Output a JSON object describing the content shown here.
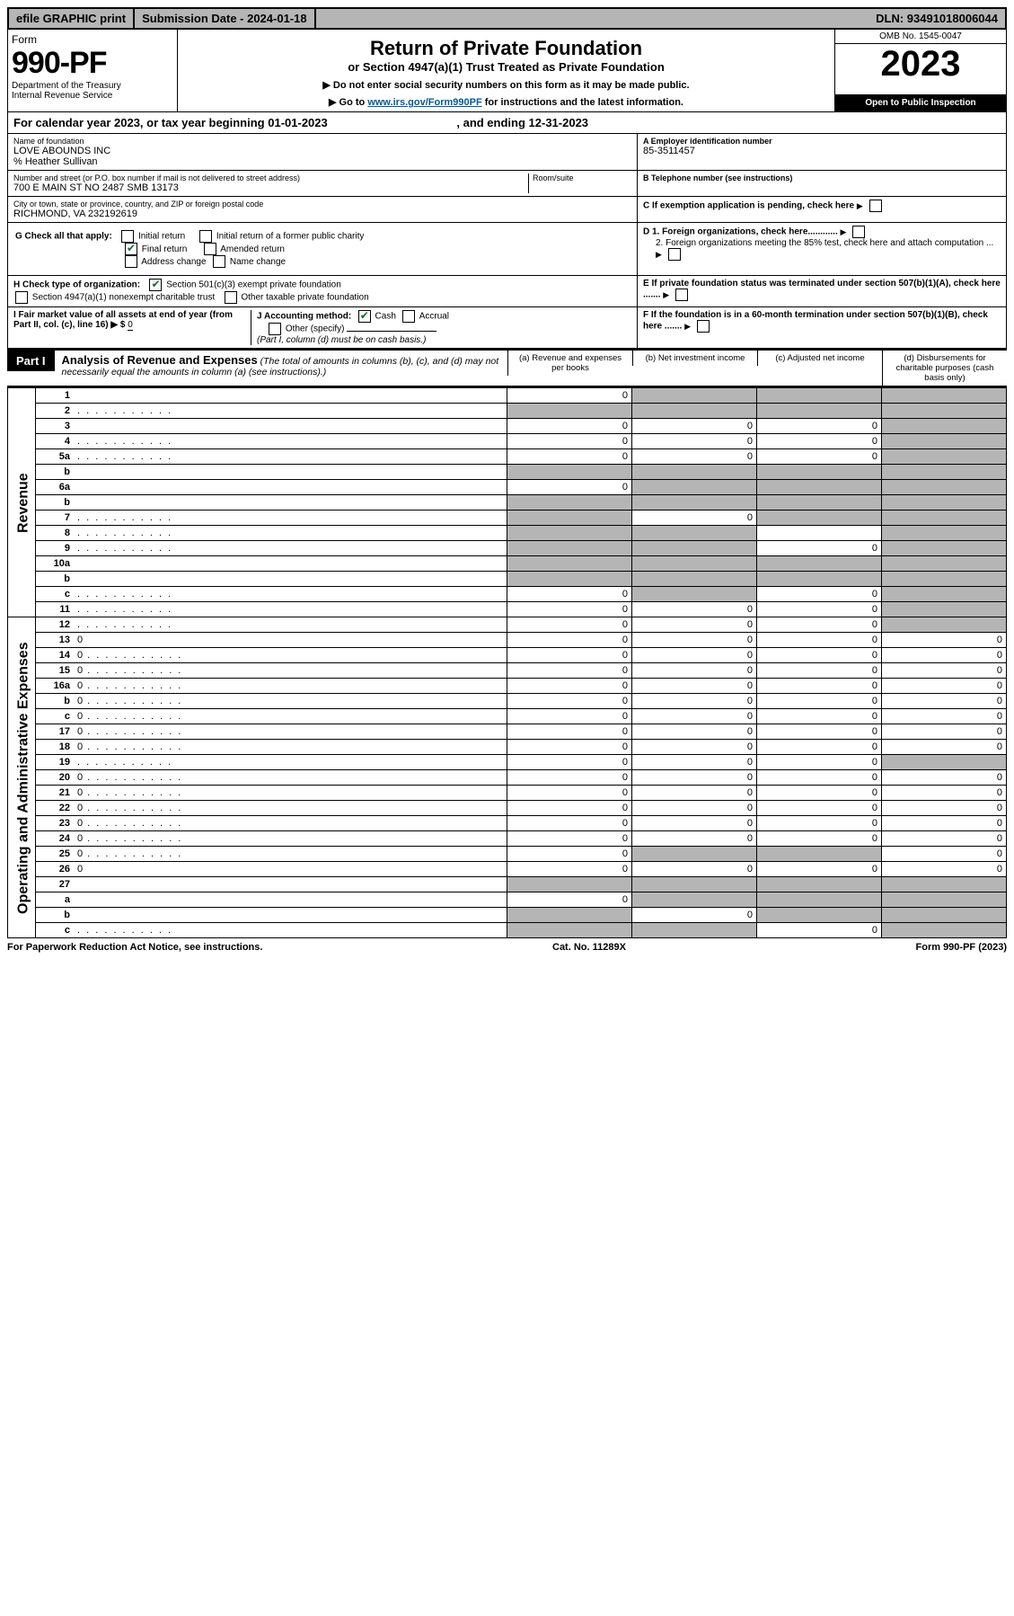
{
  "topbar": {
    "efile": "efile GRAPHIC print",
    "submission": "Submission Date - 2024-01-18",
    "dln": "DLN: 93491018006044"
  },
  "header": {
    "form": "Form",
    "number": "990-PF",
    "dept": "Department of the Treasury",
    "irs": "Internal Revenue Service",
    "title": "Return of Private Foundation",
    "subtitle": "or Section 4947(a)(1) Trust Treated as Private Foundation",
    "note1": "▶ Do not enter social security numbers on this form as it may be made public.",
    "note2_pre": "▶ Go to ",
    "note2_link": "www.irs.gov/Form990PF",
    "note2_post": " for instructions and the latest information.",
    "omb": "OMB No. 1545-0047",
    "year": "2023",
    "open": "Open to Public Inspection"
  },
  "calendar": {
    "text_pre": "For calendar year 2023, or tax year beginning ",
    "begin": "01-01-2023",
    "mid": " , and ending ",
    "end": "12-31-2023"
  },
  "identity": {
    "name_label": "Name of foundation",
    "name": "LOVE ABOUNDS INC",
    "care_of": "% Heather Sullivan",
    "street_label": "Number and street (or P.O. box number if mail is not delivered to street address)",
    "street": "700 E MAIN ST NO 2487 SMB 13173",
    "room_label": "Room/suite",
    "city_label": "City or town, state or province, country, and ZIP or foreign postal code",
    "city": "RICHMOND, VA  232192619",
    "ein_label": "A Employer identification number",
    "ein": "85-3511457",
    "phone_label": "B Telephone number (see instructions)",
    "c_label": "C If exemption application is pending, check here",
    "d1": "D 1. Foreign organizations, check here............",
    "d2": "2. Foreign organizations meeting the 85% test, check here and attach computation ...",
    "e": "E  If private foundation status was terminated under section 507(b)(1)(A), check here .......",
    "f": "F  If the foundation is in a 60-month termination under section 507(b)(1)(B), check here .......",
    "g_label": "G Check all that apply:",
    "g_opts": [
      "Initial return",
      "Final return",
      "Address change",
      "Initial return of a former public charity",
      "Amended return",
      "Name change"
    ],
    "h_label": "H Check type of organization:",
    "h_opts": [
      "Section 501(c)(3) exempt private foundation",
      "Section 4947(a)(1) nonexempt charitable trust",
      "Other taxable private foundation"
    ],
    "i_label": "I Fair market value of all assets at end of year (from Part II, col. (c), line 16) ▶ $",
    "i_val": "0",
    "j_label": "J Accounting method:",
    "j_opts": [
      "Cash",
      "Accrual",
      "Other (specify)"
    ],
    "j_note": "(Part I, column (d) must be on cash basis.)"
  },
  "part1": {
    "label": "Part I",
    "title": "Analysis of Revenue and Expenses",
    "title_note": "(The total of amounts in columns (b), (c), and (d) may not necessarily equal the amounts in column (a) (see instructions).)",
    "col_a": "(a)   Revenue and expenses per books",
    "col_b": "(b)   Net investment income",
    "col_c": "(c)   Adjusted net income",
    "col_d": "(d)   Disbursements for charitable purposes (cash basis only)",
    "side_rev": "Revenue",
    "side_exp": "Operating and Administrative Expenses"
  },
  "rows": [
    {
      "n": "1",
      "d": "",
      "a": "0",
      "b": "",
      "c": "",
      "sb": true,
      "sc": true,
      "sd": true
    },
    {
      "n": "2",
      "d": "",
      "dots": true,
      "a": "",
      "b": "",
      "c": "",
      "sa": true,
      "sb": true,
      "sc": true,
      "sd": true
    },
    {
      "n": "3",
      "d": "",
      "a": "0",
      "b": "0",
      "c": "0",
      "sd": true
    },
    {
      "n": "4",
      "d": "",
      "dots": true,
      "a": "0",
      "b": "0",
      "c": "0",
      "sd": true
    },
    {
      "n": "5a",
      "d": "",
      "dots": true,
      "a": "0",
      "b": "0",
      "c": "0",
      "sd": true
    },
    {
      "n": "b",
      "d": "",
      "a": "",
      "b": "",
      "c": "",
      "sa": true,
      "sb": true,
      "sc": true,
      "sd": true
    },
    {
      "n": "6a",
      "d": "",
      "a": "0",
      "b": "",
      "c": "",
      "sb": true,
      "sc": true,
      "sd": true
    },
    {
      "n": "b",
      "d": "",
      "a": "",
      "b": "",
      "c": "",
      "sa": true,
      "sb": true,
      "sc": true,
      "sd": true
    },
    {
      "n": "7",
      "d": "",
      "dots": true,
      "a": "",
      "b": "0",
      "c": "",
      "sa": true,
      "sc": true,
      "sd": true
    },
    {
      "n": "8",
      "d": "",
      "dots": true,
      "a": "",
      "b": "",
      "c": "",
      "sa": true,
      "sb": true,
      "sd": true
    },
    {
      "n": "9",
      "d": "",
      "dots": true,
      "a": "",
      "b": "",
      "c": "0",
      "sa": true,
      "sb": true,
      "sd": true
    },
    {
      "n": "10a",
      "d": "",
      "a": "",
      "b": "",
      "c": "",
      "sa": true,
      "sb": true,
      "sc": true,
      "sd": true
    },
    {
      "n": "b",
      "d": "",
      "a": "",
      "b": "",
      "c": "",
      "sa": true,
      "sb": true,
      "sc": true,
      "sd": true
    },
    {
      "n": "c",
      "d": "",
      "dots": true,
      "a": "0",
      "b": "",
      "c": "0",
      "sb": true,
      "sd": true
    },
    {
      "n": "11",
      "d": "",
      "dots": true,
      "a": "0",
      "b": "0",
      "c": "0",
      "sd": true
    },
    {
      "n": "12",
      "d": "",
      "dots": true,
      "a": "0",
      "b": "0",
      "c": "0",
      "sd": true
    },
    {
      "n": "13",
      "d": "0",
      "a": "0",
      "b": "0",
      "c": "0"
    },
    {
      "n": "14",
      "d": "0",
      "dots": true,
      "a": "0",
      "b": "0",
      "c": "0"
    },
    {
      "n": "15",
      "d": "0",
      "dots": true,
      "a": "0",
      "b": "0",
      "c": "0"
    },
    {
      "n": "16a",
      "d": "0",
      "dots": true,
      "a": "0",
      "b": "0",
      "c": "0"
    },
    {
      "n": "b",
      "d": "0",
      "dots": true,
      "a": "0",
      "b": "0",
      "c": "0"
    },
    {
      "n": "c",
      "d": "0",
      "dots": true,
      "a": "0",
      "b": "0",
      "c": "0"
    },
    {
      "n": "17",
      "d": "0",
      "dots": true,
      "a": "0",
      "b": "0",
      "c": "0"
    },
    {
      "n": "18",
      "d": "0",
      "dots": true,
      "a": "0",
      "b": "0",
      "c": "0"
    },
    {
      "n": "19",
      "d": "",
      "dots": true,
      "a": "0",
      "b": "0",
      "c": "0",
      "sd": true
    },
    {
      "n": "20",
      "d": "0",
      "dots": true,
      "a": "0",
      "b": "0",
      "c": "0"
    },
    {
      "n": "21",
      "d": "0",
      "dots": true,
      "a": "0",
      "b": "0",
      "c": "0"
    },
    {
      "n": "22",
      "d": "0",
      "dots": true,
      "a": "0",
      "b": "0",
      "c": "0"
    },
    {
      "n": "23",
      "d": "0",
      "dots": true,
      "a": "0",
      "b": "0",
      "c": "0"
    },
    {
      "n": "24",
      "d": "0",
      "dots": true,
      "a": "0",
      "b": "0",
      "c": "0"
    },
    {
      "n": "25",
      "d": "0",
      "dots": true,
      "a": "0",
      "b": "",
      "c": "",
      "sb": true,
      "sc": true
    },
    {
      "n": "26",
      "d": "0",
      "a": "0",
      "b": "0",
      "c": "0"
    },
    {
      "n": "27",
      "d": "",
      "a": "",
      "b": "",
      "c": "",
      "sa": true,
      "sb": true,
      "sc": true,
      "sd": true
    },
    {
      "n": "a",
      "d": "",
      "a": "0",
      "b": "",
      "c": "",
      "sb": true,
      "sc": true,
      "sd": true
    },
    {
      "n": "b",
      "d": "",
      "a": "",
      "b": "0",
      "c": "",
      "sa": true,
      "sc": true,
      "sd": true
    },
    {
      "n": "c",
      "d": "",
      "dots": true,
      "a": "",
      "b": "",
      "c": "0",
      "sa": true,
      "sb": true,
      "sd": true
    }
  ],
  "footer": {
    "left": "For Paperwork Reduction Act Notice, see instructions.",
    "mid": "Cat. No. 11289X",
    "right": "Form 990-PF (2023)"
  }
}
